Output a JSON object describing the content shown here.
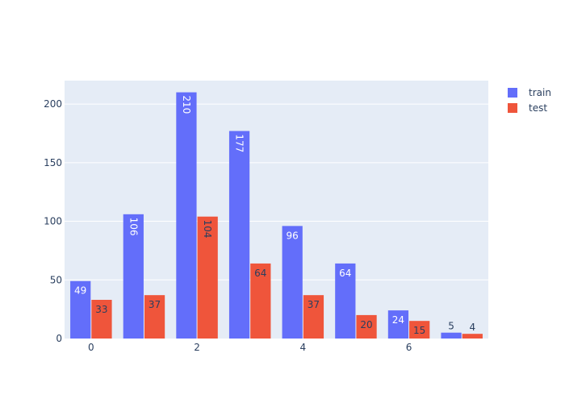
{
  "chart_data": {
    "type": "bar",
    "categories": [
      "0",
      "1",
      "2",
      "3",
      "4",
      "5",
      "6",
      "7"
    ],
    "x_tick_labels": [
      "0",
      "2",
      "4",
      "6"
    ],
    "x_tick_positions": [
      0,
      2,
      4,
      6
    ],
    "ylim": [
      0,
      220
    ],
    "y_tick_values": [
      0,
      50,
      100,
      150,
      200
    ],
    "y_tick_labels": [
      "0",
      "50",
      "100",
      "150",
      "200"
    ],
    "grid": true,
    "legend_position": "top-right",
    "series": [
      {
        "name": "train",
        "color": "#636efa",
        "label_color": "#ffffff",
        "values": [
          49,
          106,
          210,
          177,
          96,
          64,
          24,
          5
        ]
      },
      {
        "name": "test",
        "color": "#ef553b",
        "label_color": "#2a3f5f",
        "values": [
          33,
          37,
          104,
          64,
          37,
          20,
          15,
          4
        ]
      }
    ],
    "plot_background": "#e5ecf6",
    "text_color": "#2a3f5f"
  }
}
